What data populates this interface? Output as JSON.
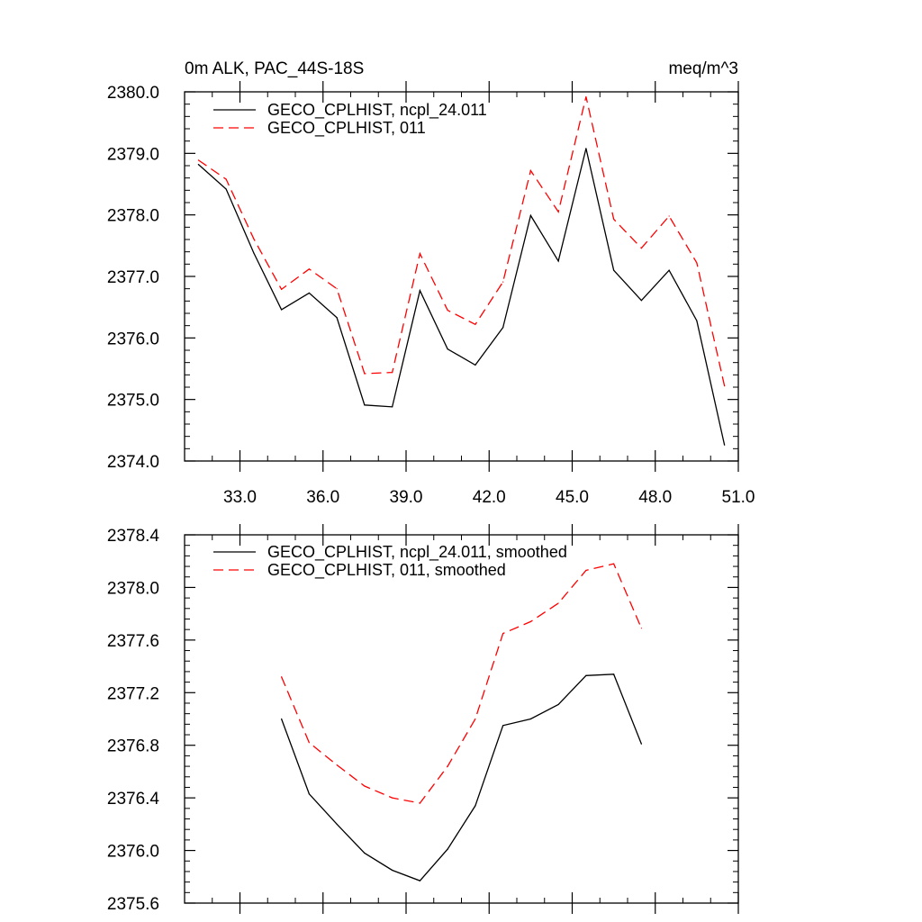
{
  "chart_data": [
    {
      "type": "line",
      "title_left": "0m ALK, PAC_44S-18S",
      "title_right": "meq/m^3",
      "xlim": [
        31.0,
        51.0
      ],
      "ylim": [
        2374.0,
        2380.0
      ],
      "x_ticks": [
        33.0,
        36.0,
        39.0,
        42.0,
        45.0,
        48.0,
        51.0
      ],
      "x_tick_labels": [
        "33.0",
        "36.0",
        "39.0",
        "42.0",
        "45.0",
        "48.0",
        "51.0"
      ],
      "y_ticks": [
        2374.0,
        2375.0,
        2376.0,
        2377.0,
        2378.0,
        2379.0,
        2380.0
      ],
      "y_tick_labels": [
        "2374.0",
        "2375.0",
        "2376.0",
        "2377.0",
        "2378.0",
        "2379.0",
        "2380.0"
      ],
      "legend_position": "top-left",
      "x": [
        31.5,
        32.5,
        33.5,
        34.5,
        35.5,
        36.5,
        37.5,
        38.5,
        39.5,
        40.5,
        41.5,
        42.5,
        43.5,
        44.5,
        45.5,
        46.5,
        47.5,
        48.5,
        49.5,
        50.5
      ],
      "series": [
        {
          "name": "GECO_CPLHIST, ncpl_24.011",
          "color": "#000000",
          "dash": "solid",
          "values": [
            2378.82,
            2378.42,
            2377.38,
            2376.46,
            2376.73,
            2376.33,
            2374.91,
            2374.88,
            2376.77,
            2375.82,
            2375.56,
            2376.17,
            2377.99,
            2377.25,
            2379.08,
            2377.1,
            2376.61,
            2377.1,
            2376.28,
            2374.26
          ]
        },
        {
          "name": "GECO_CPLHIST, 011",
          "color": "#ff0000",
          "dash": "dashed",
          "values": [
            2378.89,
            2378.58,
            2377.61,
            2376.79,
            2377.12,
            2376.8,
            2375.42,
            2375.44,
            2377.37,
            2376.45,
            2376.22,
            2376.91,
            2378.72,
            2378.05,
            2379.92,
            2377.93,
            2377.46,
            2377.98,
            2377.22,
            2375.22
          ]
        }
      ]
    },
    {
      "type": "line",
      "xlim": [
        31.0,
        51.0
      ],
      "ylim": [
        2375.6,
        2378.4
      ],
      "x_ticks": [
        33.0,
        36.0,
        39.0,
        42.0,
        45.0,
        48.0,
        51.0
      ],
      "y_ticks": [
        2375.6,
        2376.0,
        2376.4,
        2376.8,
        2377.2,
        2377.6,
        2378.0,
        2378.4
      ],
      "y_tick_labels": [
        "2375.6",
        "2376.0",
        "2376.4",
        "2376.8",
        "2377.2",
        "2377.6",
        "2378.0",
        "2378.4"
      ],
      "legend_position": "top-left",
      "x": [
        34.5,
        35.5,
        36.5,
        37.5,
        38.5,
        39.5,
        40.5,
        41.5,
        42.5,
        43.5,
        44.5,
        45.5,
        46.5,
        47.5
      ],
      "series": [
        {
          "name": "GECO_CPLHIST, ncpl_24.011, smoothed",
          "color": "#000000",
          "dash": "solid",
          "values": [
            2377.0,
            2376.43,
            2376.2,
            2375.98,
            2375.85,
            2375.77,
            2376.01,
            2376.34,
            2376.95,
            2377.0,
            2377.11,
            2377.33,
            2377.34,
            2376.81
          ]
        },
        {
          "name": "GECO_CPLHIST, 011, smoothed",
          "color": "#ff0000",
          "dash": "dashed",
          "values": [
            2377.32,
            2376.82,
            2376.65,
            2376.49,
            2376.4,
            2376.36,
            2376.64,
            2377.0,
            2377.65,
            2377.74,
            2377.88,
            2378.13,
            2378.18,
            2377.69
          ]
        }
      ]
    }
  ]
}
